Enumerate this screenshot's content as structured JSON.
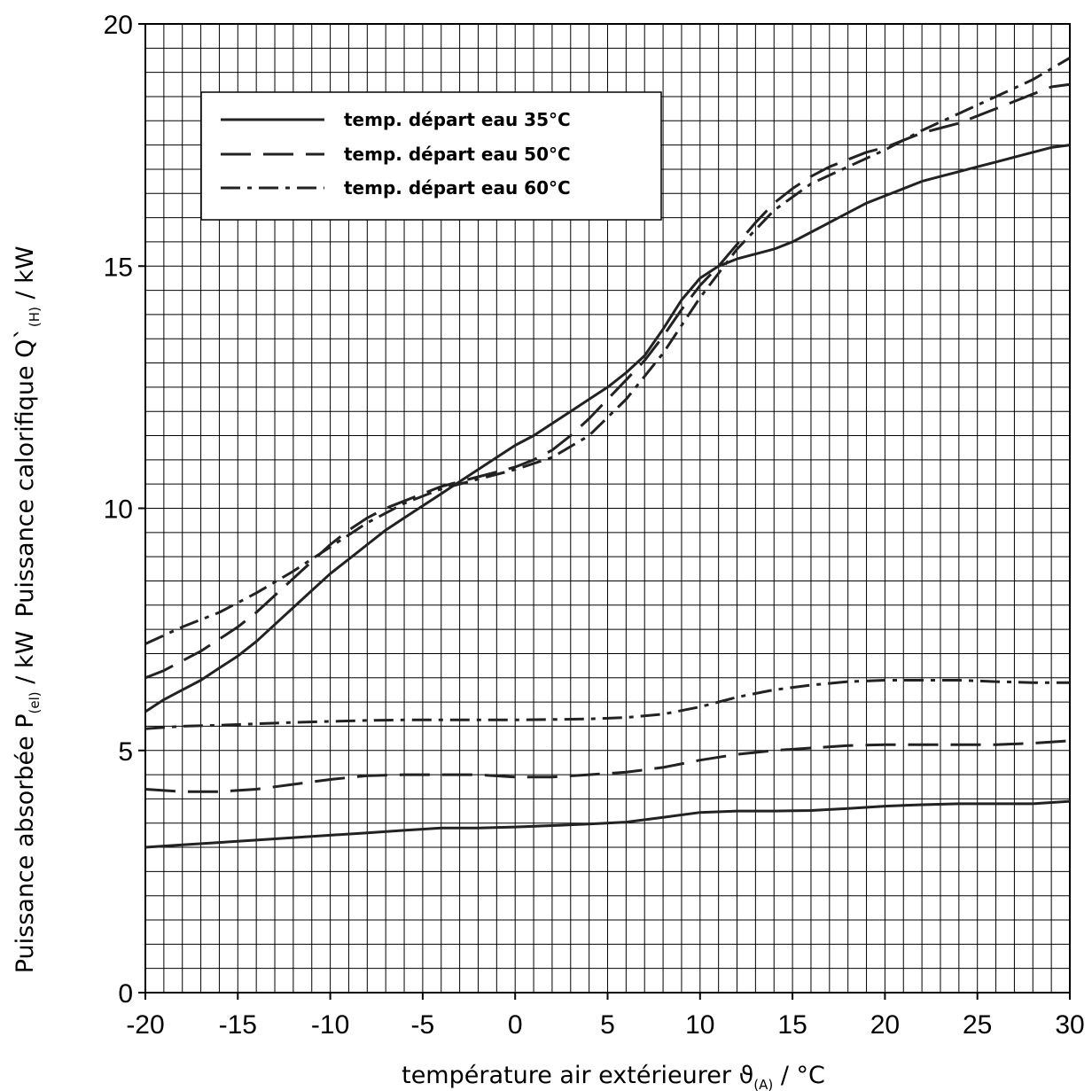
{
  "chart_data": {
    "type": "line",
    "xlabel": "température air extérieurer ϑ(A) / °C",
    "xlabel_main": "température air extérieurer ",
    "xlabel_symbol": "ϑ",
    "xlabel_sub": "(A)",
    "xlabel_unit": " / °C",
    "ylabel_top": "Puissance calorifique Q`(H) / kW",
    "ylabel_top_main": "Puissance calorifique  Q`",
    "ylabel_top_sub": "(H)",
    "ylabel_top_unit": " / kW",
    "ylabel_bottom": "Puissance absorbée P(el) / kW",
    "ylabel_bottom_main": "Puissance absorbée P",
    "ylabel_bottom_sub": "(el)",
    "ylabel_bottom_unit": " / kW",
    "xlim": [
      -20,
      30
    ],
    "ylim": [
      0,
      20
    ],
    "x_ticks": [
      "-20",
      "-15",
      "-10",
      "-5",
      "0",
      "5",
      "10",
      "15",
      "20",
      "25",
      "30"
    ],
    "y_ticks": [
      "0",
      "5",
      "10",
      "15",
      "20"
    ],
    "grid": true,
    "legend_position": "top-left",
    "series": [
      {
        "name": "temp. départ eau 35°C",
        "dash": "solid",
        "heat": [
          [
            -20,
            5.8
          ],
          [
            -19,
            6.05
          ],
          [
            -18,
            6.25
          ],
          [
            -17,
            6.45
          ],
          [
            -16,
            6.7
          ],
          [
            -15,
            6.95
          ],
          [
            -14,
            7.25
          ],
          [
            -13,
            7.6
          ],
          [
            -12,
            7.95
          ],
          [
            -11,
            8.3
          ],
          [
            -10,
            8.65
          ],
          [
            -9,
            8.95
          ],
          [
            -8,
            9.25
          ],
          [
            -7,
            9.55
          ],
          [
            -6,
            9.8
          ],
          [
            -5,
            10.05
          ],
          [
            -4,
            10.3
          ],
          [
            -3,
            10.55
          ],
          [
            -2,
            10.8
          ],
          [
            -1,
            11.05
          ],
          [
            0,
            11.3
          ],
          [
            1,
            11.5
          ],
          [
            2,
            11.75
          ],
          [
            3,
            12.0
          ],
          [
            4,
            12.25
          ],
          [
            5,
            12.5
          ],
          [
            6,
            12.8
          ],
          [
            7,
            13.15
          ],
          [
            8,
            13.7
          ],
          [
            9,
            14.3
          ],
          [
            10,
            14.75
          ],
          [
            11,
            15.0
          ],
          [
            12,
            15.15
          ],
          [
            13,
            15.25
          ],
          [
            14,
            15.35
          ],
          [
            15,
            15.5
          ],
          [
            16,
            15.7
          ],
          [
            17,
            15.9
          ],
          [
            18,
            16.1
          ],
          [
            19,
            16.3
          ],
          [
            20,
            16.45
          ],
          [
            21,
            16.6
          ],
          [
            22,
            16.75
          ],
          [
            23,
            16.85
          ],
          [
            24,
            16.95
          ],
          [
            25,
            17.05
          ],
          [
            26,
            17.15
          ],
          [
            27,
            17.25
          ],
          [
            28,
            17.35
          ],
          [
            29,
            17.45
          ],
          [
            30,
            17.5
          ]
        ],
        "power": [
          [
            -20,
            3.0
          ],
          [
            -18,
            3.05
          ],
          [
            -16,
            3.1
          ],
          [
            -14,
            3.15
          ],
          [
            -12,
            3.2
          ],
          [
            -10,
            3.25
          ],
          [
            -8,
            3.3
          ],
          [
            -6,
            3.35
          ],
          [
            -4,
            3.4
          ],
          [
            -2,
            3.4
          ],
          [
            0,
            3.42
          ],
          [
            2,
            3.45
          ],
          [
            4,
            3.48
          ],
          [
            6,
            3.52
          ],
          [
            8,
            3.62
          ],
          [
            10,
            3.72
          ],
          [
            12,
            3.75
          ],
          [
            14,
            3.75
          ],
          [
            16,
            3.76
          ],
          [
            18,
            3.8
          ],
          [
            20,
            3.85
          ],
          [
            22,
            3.88
          ],
          [
            24,
            3.9
          ],
          [
            26,
            3.9
          ],
          [
            28,
            3.9
          ],
          [
            30,
            3.95
          ]
        ]
      },
      {
        "name": "temp. départ eau 50°C",
        "dash": "dashed",
        "heat": [
          [
            -20,
            6.5
          ],
          [
            -19,
            6.65
          ],
          [
            -18,
            6.85
          ],
          [
            -17,
            7.05
          ],
          [
            -16,
            7.3
          ],
          [
            -15,
            7.55
          ],
          [
            -14,
            7.85
          ],
          [
            -13,
            8.2
          ],
          [
            -12,
            8.55
          ],
          [
            -11,
            8.9
          ],
          [
            -10,
            9.25
          ],
          [
            -9,
            9.55
          ],
          [
            -8,
            9.8
          ],
          [
            -7,
            10.0
          ],
          [
            -6,
            10.15
          ],
          [
            -5,
            10.3
          ],
          [
            -4,
            10.45
          ],
          [
            -3,
            10.55
          ],
          [
            -2,
            10.65
          ],
          [
            -1,
            10.75
          ],
          [
            0,
            10.85
          ],
          [
            1,
            11.0
          ],
          [
            2,
            11.2
          ],
          [
            3,
            11.5
          ],
          [
            4,
            11.85
          ],
          [
            5,
            12.25
          ],
          [
            6,
            12.65
          ],
          [
            7,
            13.05
          ],
          [
            8,
            13.55
          ],
          [
            9,
            14.1
          ],
          [
            10,
            14.6
          ],
          [
            11,
            15.0
          ],
          [
            12,
            15.45
          ],
          [
            13,
            15.9
          ],
          [
            14,
            16.3
          ],
          [
            15,
            16.6
          ],
          [
            16,
            16.85
          ],
          [
            17,
            17.05
          ],
          [
            18,
            17.2
          ],
          [
            19,
            17.35
          ],
          [
            20,
            17.45
          ],
          [
            21,
            17.6
          ],
          [
            22,
            17.75
          ],
          [
            23,
            17.85
          ],
          [
            24,
            17.95
          ],
          [
            25,
            18.1
          ],
          [
            26,
            18.25
          ],
          [
            27,
            18.4
          ],
          [
            28,
            18.55
          ],
          [
            29,
            18.7
          ],
          [
            30,
            18.75
          ]
        ],
        "power": [
          [
            -20,
            4.2
          ],
          [
            -18,
            4.15
          ],
          [
            -16,
            4.15
          ],
          [
            -14,
            4.2
          ],
          [
            -12,
            4.3
          ],
          [
            -10,
            4.4
          ],
          [
            -8,
            4.48
          ],
          [
            -6,
            4.5
          ],
          [
            -4,
            4.5
          ],
          [
            -2,
            4.5
          ],
          [
            0,
            4.45
          ],
          [
            2,
            4.45
          ],
          [
            4,
            4.5
          ],
          [
            6,
            4.55
          ],
          [
            8,
            4.65
          ],
          [
            10,
            4.8
          ],
          [
            12,
            4.92
          ],
          [
            14,
            5.0
          ],
          [
            16,
            5.05
          ],
          [
            18,
            5.1
          ],
          [
            20,
            5.12
          ],
          [
            22,
            5.12
          ],
          [
            24,
            5.12
          ],
          [
            26,
            5.12
          ],
          [
            28,
            5.15
          ],
          [
            30,
            5.2
          ]
        ]
      },
      {
        "name": "temp. départ eau 60°C",
        "dash": "dashdot",
        "heat": [
          [
            -20,
            7.2
          ],
          [
            -18,
            7.55
          ],
          [
            -16,
            7.85
          ],
          [
            -14,
            8.25
          ],
          [
            -12,
            8.7
          ],
          [
            -10,
            9.2
          ],
          [
            -8,
            9.7
          ],
          [
            -6,
            10.1
          ],
          [
            -4,
            10.4
          ],
          [
            -2,
            10.6
          ],
          [
            0,
            10.8
          ],
          [
            2,
            11.05
          ],
          [
            4,
            11.5
          ],
          [
            6,
            12.25
          ],
          [
            8,
            13.2
          ],
          [
            10,
            14.35
          ],
          [
            12,
            15.35
          ],
          [
            14,
            16.15
          ],
          [
            16,
            16.7
          ],
          [
            18,
            17.05
          ],
          [
            20,
            17.4
          ],
          [
            22,
            17.8
          ],
          [
            24,
            18.15
          ],
          [
            26,
            18.5
          ],
          [
            28,
            18.85
          ],
          [
            30,
            19.3
          ]
        ],
        "power": [
          [
            -20,
            5.45
          ],
          [
            -18,
            5.5
          ],
          [
            -16,
            5.52
          ],
          [
            -14,
            5.55
          ],
          [
            -12,
            5.58
          ],
          [
            -10,
            5.6
          ],
          [
            -8,
            5.62
          ],
          [
            -6,
            5.63
          ],
          [
            -4,
            5.63
          ],
          [
            -2,
            5.63
          ],
          [
            0,
            5.63
          ],
          [
            2,
            5.64
          ],
          [
            4,
            5.65
          ],
          [
            6,
            5.68
          ],
          [
            8,
            5.75
          ],
          [
            10,
            5.9
          ],
          [
            12,
            6.1
          ],
          [
            14,
            6.25
          ],
          [
            16,
            6.35
          ],
          [
            18,
            6.42
          ],
          [
            20,
            6.45
          ],
          [
            22,
            6.45
          ],
          [
            24,
            6.45
          ],
          [
            26,
            6.42
          ],
          [
            28,
            6.4
          ],
          [
            30,
            6.4
          ]
        ]
      }
    ]
  }
}
